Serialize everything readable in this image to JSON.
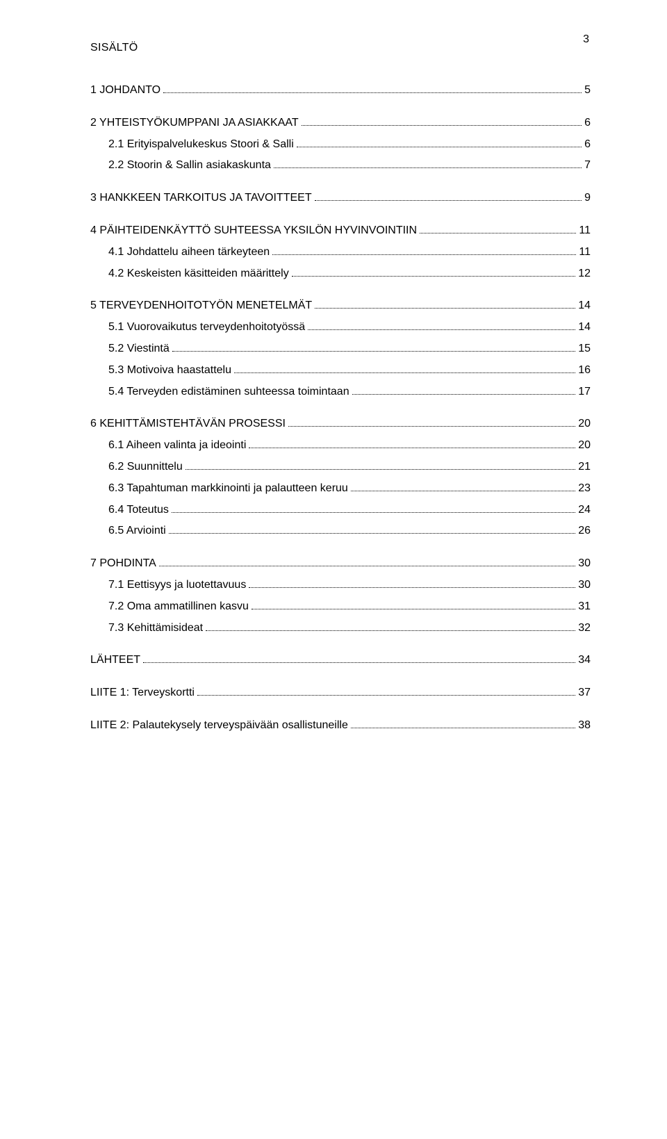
{
  "page_number": "3",
  "toc_title": "SISÄLTÖ",
  "entries": [
    {
      "level": 1,
      "label": "1 JOHDANTO",
      "page": "5"
    },
    {
      "level": 1,
      "label": "2 YHTEISTYÖKUMPPANI JA ASIAKKAAT",
      "page": "6"
    },
    {
      "level": 2,
      "label": "2.1 Erityispalvelukeskus Stoori & Salli",
      "page": "6"
    },
    {
      "level": 2,
      "label": "2.2 Stoorin & Sallin asiakaskunta",
      "page": "7"
    },
    {
      "level": 1,
      "label": "3 HANKKEEN TARKOITUS JA TAVOITTEET",
      "page": "9"
    },
    {
      "level": 1,
      "label": "4 PÄIHTEIDENKÄYTTÖ SUHTEESSA YKSILÖN HYVINVOINTIIN",
      "page": "11"
    },
    {
      "level": 2,
      "label": "4.1 Johdattelu aiheen tärkeyteen",
      "page": "11"
    },
    {
      "level": 2,
      "label": "4.2 Keskeisten käsitteiden määrittely",
      "page": "12"
    },
    {
      "level": 1,
      "label": "5 TERVEYDENHOITOTYÖN MENETELMÄT",
      "page": "14"
    },
    {
      "level": 2,
      "label": "5.1 Vuorovaikutus terveydenhoitotyössä",
      "page": "14"
    },
    {
      "level": 2,
      "label": "5.2 Viestintä",
      "page": "15"
    },
    {
      "level": 2,
      "label": "5.3 Motivoiva haastattelu",
      "page": "16"
    },
    {
      "level": 2,
      "label": "5.4 Terveyden edistäminen suhteessa toimintaan",
      "page": "17"
    },
    {
      "level": 1,
      "label": "6 KEHITTÄMISTEHTÄVÄN PROSESSI",
      "page": "20"
    },
    {
      "level": 2,
      "label": "6.1 Aiheen valinta ja ideointi",
      "page": "20"
    },
    {
      "level": 2,
      "label": "6.2 Suunnittelu",
      "page": "21"
    },
    {
      "level": 2,
      "label": "6.3 Tapahtuman markkinointi ja palautteen keruu",
      "page": "23"
    },
    {
      "level": 2,
      "label": "6.4 Toteutus",
      "page": "24"
    },
    {
      "level": 2,
      "label": "6.5 Arviointi",
      "page": "26"
    },
    {
      "level": 1,
      "label": "7 POHDINTA",
      "page": "30"
    },
    {
      "level": 2,
      "label": "7.1 Eettisyys ja luotettavuus",
      "page": "30"
    },
    {
      "level": 2,
      "label": "7.2 Oma ammatillinen kasvu",
      "page": "31"
    },
    {
      "level": 2,
      "label": "7.3 Kehittämisideat",
      "page": "32"
    },
    {
      "level": 1,
      "label": "LÄHTEET",
      "page": "34"
    },
    {
      "level": 1,
      "label": "LIITE 1: Terveyskortti",
      "page": "37"
    },
    {
      "level": 1,
      "label": "LIITE 2: Palautekysely terveyspäivään osallistuneille",
      "page": "38"
    }
  ]
}
